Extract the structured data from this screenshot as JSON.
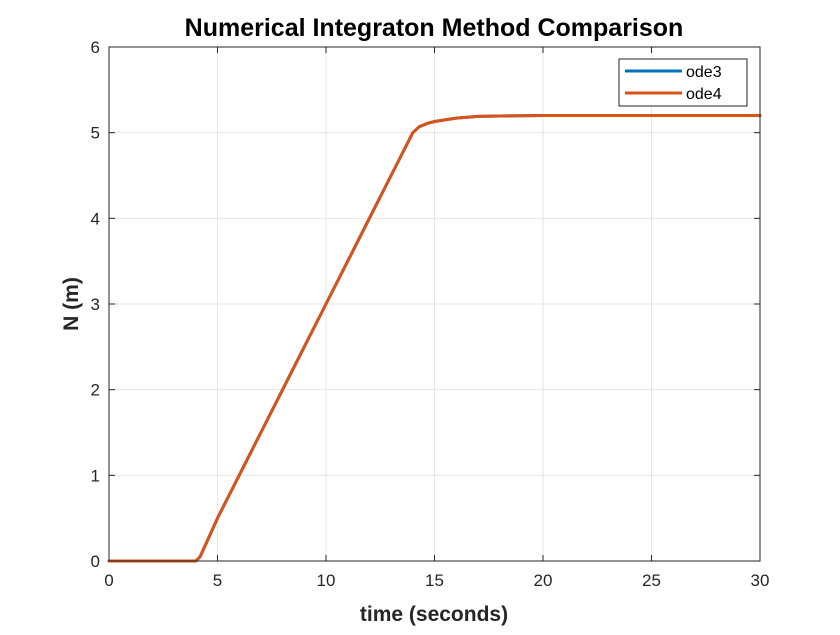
{
  "chart_data": {
    "type": "line",
    "title": "Numerical Integraton Method Comparison",
    "xlabel": "time (seconds)",
    "ylabel": "N (m)",
    "xlim": [
      0,
      30
    ],
    "ylim": [
      0,
      6
    ],
    "xticks": [
      0,
      5,
      10,
      15,
      20,
      25,
      30
    ],
    "yticks": [
      0,
      1,
      2,
      3,
      4,
      5,
      6
    ],
    "grid": true,
    "legend_position": "top-right",
    "series": [
      {
        "name": "ode3",
        "color": "#0072BD",
        "x": [
          0,
          4.0,
          4.2,
          5,
          6,
          7,
          8,
          9,
          10,
          11,
          12,
          13,
          14.0,
          14.3,
          14.7,
          15,
          16,
          17,
          18,
          20,
          22,
          25,
          30
        ],
        "y": [
          0,
          0,
          0.05,
          0.5,
          1.0,
          1.5,
          2.0,
          2.5,
          3.0,
          3.5,
          4.0,
          4.5,
          5.0,
          5.07,
          5.11,
          5.13,
          5.17,
          5.19,
          5.195,
          5.2,
          5.2,
          5.2,
          5.2
        ]
      },
      {
        "name": "ode4",
        "color": "#D95319",
        "x": [
          0,
          4.0,
          4.2,
          5,
          6,
          7,
          8,
          9,
          10,
          11,
          12,
          13,
          14.0,
          14.3,
          14.7,
          15,
          16,
          17,
          18,
          20,
          22,
          25,
          30
        ],
        "y": [
          0,
          0,
          0.05,
          0.5,
          1.0,
          1.5,
          2.0,
          2.5,
          3.0,
          3.5,
          4.0,
          4.5,
          5.0,
          5.07,
          5.11,
          5.13,
          5.17,
          5.19,
          5.195,
          5.2,
          5.2,
          5.2,
          5.2
        ]
      }
    ]
  }
}
